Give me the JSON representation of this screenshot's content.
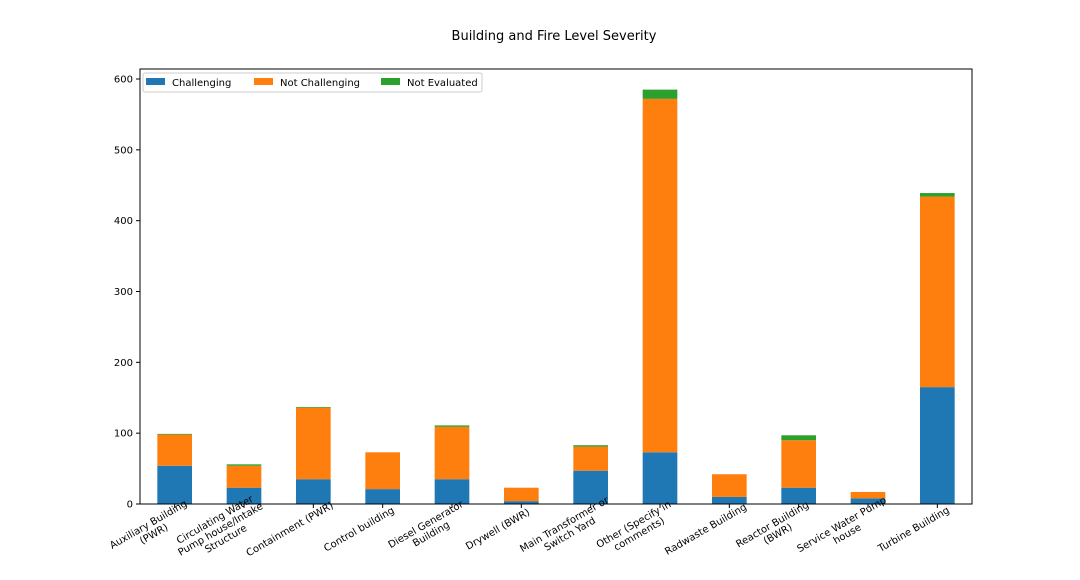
{
  "chart_data": {
    "type": "stacked_bar",
    "title": "Building and Fire Level Severity",
    "categories": [
      "Auxiliary Building\n(PWR)",
      "Circulating Water\nPump house/Intake\nStructure",
      "Containment (PWR)",
      "Control building",
      "Diesel Generator\nBuilding",
      "Drywell (BWR)",
      "Main Transformer or\nSwitch Yard",
      "Other (Specify in\ncomments)",
      "Radwaste Building",
      "Reactor Building\n(BWR)",
      "Service Water Pump\nhouse",
      "Turbine Building"
    ],
    "series": [
      {
        "name": "Challenging",
        "color": "#1f77b4",
        "values": [
          54,
          23,
          35,
          21,
          35,
          4,
          47,
          73,
          10,
          23,
          8,
          165
        ]
      },
      {
        "name": "Not Challenging",
        "color": "#ff7f0e",
        "values": [
          44,
          31,
          101,
          52,
          74,
          19,
          34,
          499,
          32,
          67,
          9,
          269
        ]
      },
      {
        "name": "Not Evaluated",
        "color": "#2ca02c",
        "values": [
          1,
          2,
          1,
          0,
          2,
          0,
          2,
          13,
          0,
          7,
          0,
          5
        ]
      }
    ],
    "ylim": [
      0,
      600
    ],
    "yticks": [
      0,
      100,
      200,
      300,
      400,
      500,
      600
    ],
    "legend": "upper left"
  }
}
